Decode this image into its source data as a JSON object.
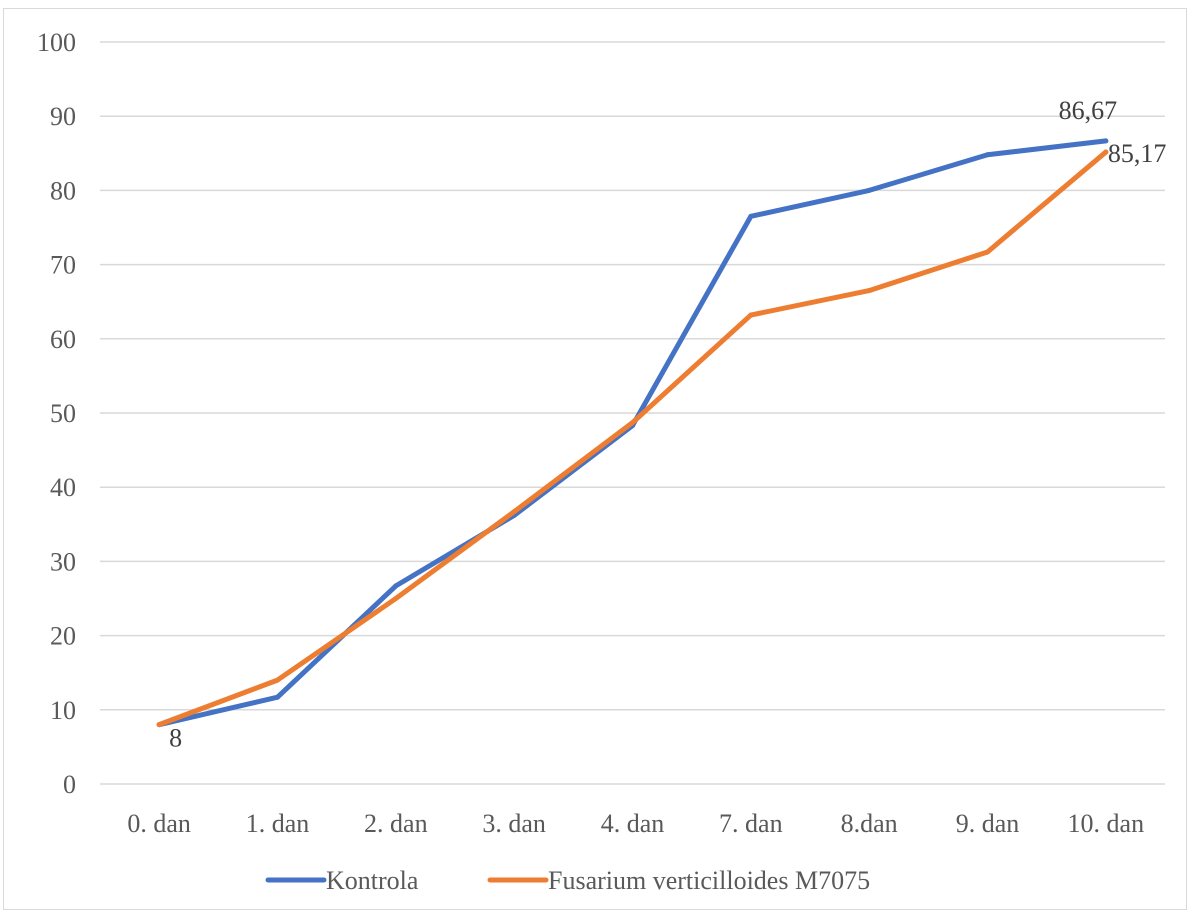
{
  "chart_data": {
    "type": "line",
    "categories": [
      "0. dan",
      "1. dan",
      "2. dan",
      "3. dan",
      "4. dan",
      "7. dan",
      "8.dan",
      "9. dan",
      "10. dan"
    ],
    "series": [
      {
        "name": "Kontrola",
        "color": "#4472C4",
        "values": [
          8,
          11.7,
          26.7,
          36.2,
          48.3,
          76.5,
          80,
          84.8,
          86.67
        ]
      },
      {
        "name": "Fusarium verticilloides M7075",
        "color": "#ED7D31",
        "values": [
          8,
          14,
          25,
          36.7,
          48.7,
          63.2,
          66.5,
          71.7,
          85.17
        ]
      }
    ],
    "data_labels": [
      {
        "series": 0,
        "index": 0,
        "text": "8"
      },
      {
        "series": 0,
        "index": 8,
        "text": "86,67"
      },
      {
        "series": 1,
        "index": 8,
        "text": "85,17"
      }
    ],
    "ylim": [
      0,
      100
    ],
    "yticks": [
      0,
      10,
      20,
      30,
      40,
      50,
      60,
      70,
      80,
      90,
      100
    ],
    "grid": true,
    "legend_position": "bottom",
    "title": "",
    "xlabel": "",
    "ylabel": ""
  }
}
